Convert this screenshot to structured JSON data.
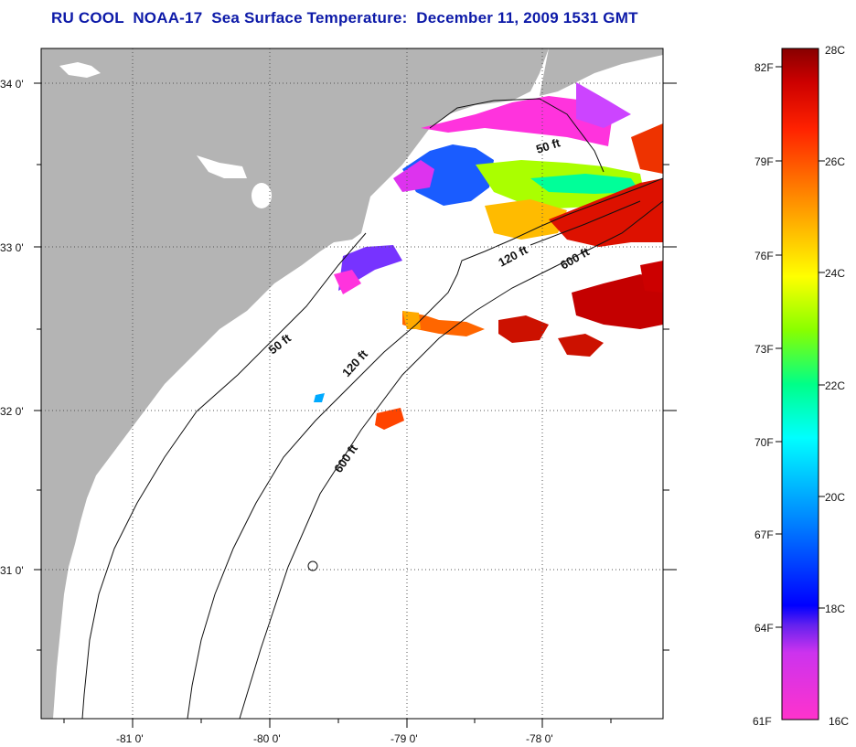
{
  "title": "RU COOL  NOAA-17  Sea Surface Temperature:  December 11, 2009 1531 GMT",
  "map": {
    "lat_labels": [
      "34 0'",
      "33 0'",
      "32 0'",
      "31 0'"
    ],
    "lon_labels": [
      "-81 0'",
      "-80 0'",
      "-79 0'",
      "-78 0'"
    ],
    "contour_labels": [
      "50 ft",
      "120 ft",
      "600 ft",
      "50 ft",
      "120 ft",
      "600 ft"
    ],
    "colors": {
      "land": "#b4b4b4",
      "ocean_nodata": "#ffffff",
      "grid": "#555555"
    }
  },
  "colorbar": {
    "fahrenheit_labels": [
      "82F",
      "79F",
      "76F",
      "73F",
      "70F",
      "67F",
      "64F",
      "61F"
    ],
    "celsius_labels": [
      "28C",
      "26C",
      "24C",
      "22C",
      "20C",
      "18C",
      "16C"
    ],
    "range_celsius": [
      16,
      28
    ],
    "colors": [
      "#ff33cc",
      "#8822ee",
      "#0000ff",
      "#00aaff",
      "#00ffff",
      "#00ff88",
      "#88ff00",
      "#ffff00",
      "#ff9900",
      "#ff2200",
      "#cc0000",
      "#880000"
    ]
  }
}
